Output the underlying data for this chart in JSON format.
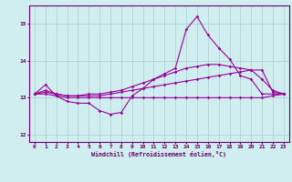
{
  "x": [
    0,
    1,
    2,
    3,
    4,
    5,
    6,
    7,
    8,
    9,
    10,
    11,
    12,
    13,
    14,
    15,
    16,
    17,
    18,
    19,
    20,
    21,
    22,
    23
  ],
  "line1": [
    13.1,
    13.35,
    13.05,
    12.9,
    12.85,
    12.85,
    12.65,
    12.55,
    12.6,
    13.05,
    13.25,
    13.5,
    13.65,
    13.8,
    14.85,
    15.2,
    14.7,
    14.35,
    14.05,
    13.6,
    13.5,
    13.1,
    13.1,
    13.1
  ],
  "line2": [
    13.1,
    13.1,
    13.05,
    13.0,
    13.0,
    13.0,
    13.0,
    13.0,
    13.0,
    13.0,
    13.0,
    13.0,
    13.0,
    13.0,
    13.0,
    13.0,
    13.0,
    13.0,
    13.0,
    13.0,
    13.0,
    13.0,
    13.05,
    13.1
  ],
  "line3": [
    13.1,
    13.15,
    13.1,
    13.05,
    13.05,
    13.05,
    13.05,
    13.1,
    13.15,
    13.2,
    13.25,
    13.3,
    13.35,
    13.4,
    13.45,
    13.5,
    13.55,
    13.6,
    13.65,
    13.7,
    13.75,
    13.75,
    13.15,
    13.1
  ],
  "line4": [
    13.1,
    13.2,
    13.1,
    13.05,
    13.05,
    13.1,
    13.1,
    13.15,
    13.2,
    13.3,
    13.4,
    13.5,
    13.6,
    13.7,
    13.8,
    13.85,
    13.9,
    13.9,
    13.85,
    13.8,
    13.75,
    13.5,
    13.2,
    13.1
  ],
  "line_color": "#990099",
  "bg_color": "#d0eef0",
  "grid_color": "#aacccc",
  "text_color": "#660066",
  "xlabel": "Windchill (Refroidissement éolien,°C)",
  "ylim": [
    11.8,
    15.5
  ],
  "xlim": [
    -0.5,
    23.5
  ],
  "yticks": [
    12,
    13,
    14,
    15
  ],
  "xticks": [
    0,
    1,
    2,
    3,
    4,
    5,
    6,
    7,
    8,
    9,
    10,
    11,
    12,
    13,
    14,
    15,
    16,
    17,
    18,
    19,
    20,
    21,
    22,
    23
  ]
}
